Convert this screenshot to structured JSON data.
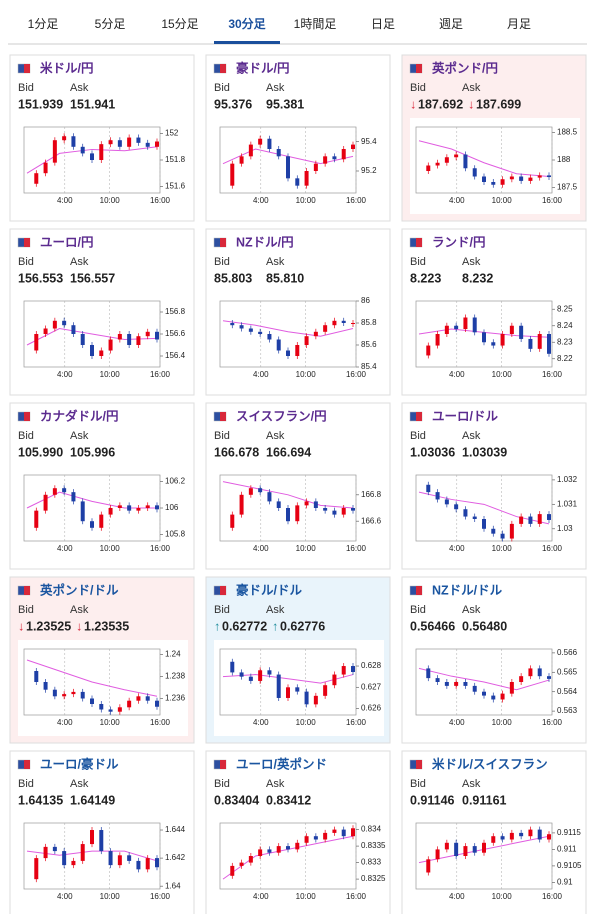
{
  "tabs": {
    "items": [
      "1分足",
      "5分足",
      "15分足",
      "30分足",
      "1時間足",
      "日足",
      "週足",
      "月足"
    ],
    "active": 3
  },
  "labels": {
    "bid": "Bid",
    "ask": "Ask"
  },
  "times": [
    "4:00",
    "10:00",
    "16:00"
  ],
  "style": {
    "up_color": "#e60012",
    "down_color": "#1e3fa6",
    "ma_color": "#e05ce0"
  },
  "cards": [
    {
      "name": "米ドル/円",
      "bid": "151.939",
      "ask": "151.941",
      "chart": {
        "ylim": [
          151.55,
          152.05
        ],
        "yticks": [
          151.6,
          151.8,
          152
        ],
        "values": [
          151.62,
          151.7,
          151.78,
          151.95,
          151.98,
          151.9,
          151.85,
          151.8,
          151.92,
          151.95,
          151.9,
          151.97,
          151.93,
          151.9,
          151.94
        ],
        "ma": [
          151.7,
          151.85,
          151.88,
          151.87,
          151.9
        ]
      }
    },
    {
      "name": "豪ドル/円",
      "bid": "95.376",
      "ask": "95.381",
      "chart": {
        "ylim": [
          95.05,
          95.5
        ],
        "yticks": [
          95.2,
          95.4
        ],
        "values": [
          95.1,
          95.25,
          95.3,
          95.38,
          95.42,
          95.35,
          95.3,
          95.15,
          95.1,
          95.2,
          95.25,
          95.3,
          95.28,
          95.35,
          95.38
        ],
        "ma": [
          95.25,
          95.35,
          95.3,
          95.25,
          95.3
        ]
      }
    },
    {
      "name": "英ポンド/円",
      "bid_arrow": "↓",
      "bid": "187.692",
      "ask_arrow": "↓",
      "ask": "187.699",
      "highlight": "#fdeeee",
      "chart": {
        "ylim": [
          187.4,
          188.6
        ],
        "yticks": [
          187.5,
          188,
          188.5
        ],
        "values": [
          187.8,
          187.9,
          187.95,
          188.05,
          188.1,
          187.85,
          187.7,
          187.6,
          187.55,
          187.65,
          187.7,
          187.62,
          187.68,
          187.72,
          187.69
        ],
        "ma": [
          188.35,
          188.2,
          187.95,
          187.75,
          187.7
        ]
      }
    },
    {
      "name": "ユーロ/円",
      "bid": "156.553",
      "ask": "156.557",
      "chart": {
        "ylim": [
          156.3,
          156.9
        ],
        "yticks": [
          156.4,
          156.6,
          156.8
        ],
        "values": [
          156.45,
          156.6,
          156.65,
          156.72,
          156.68,
          156.6,
          156.5,
          156.4,
          156.45,
          156.55,
          156.6,
          156.5,
          156.58,
          156.62,
          156.55
        ],
        "ma": [
          156.5,
          156.65,
          156.6,
          156.55,
          156.56
        ]
      }
    },
    {
      "name": "NZドル/円",
      "bid": "85.803",
      "ask": "85.810",
      "chart": {
        "ylim": [
          85.4,
          86
        ],
        "yticks": [
          85.4,
          85.6,
          85.8,
          86
        ],
        "values": [
          85.8,
          85.78,
          85.75,
          85.72,
          85.7,
          85.65,
          85.55,
          85.5,
          85.6,
          85.68,
          85.72,
          85.78,
          85.82,
          85.8,
          85.8
        ],
        "ma": [
          85.82,
          85.78,
          85.72,
          85.68,
          85.75
        ]
      }
    },
    {
      "name": "ランド/円",
      "bid": "8.223",
      "ask": "8.232",
      "chart": {
        "ylim": [
          8.215,
          8.255
        ],
        "yticks": [
          8.22,
          8.23,
          8.24,
          8.25
        ],
        "values": [
          8.222,
          8.228,
          8.235,
          8.24,
          8.238,
          8.245,
          8.236,
          8.23,
          8.228,
          8.235,
          8.24,
          8.232,
          8.226,
          8.235,
          8.223
        ],
        "ma": [
          8.235,
          8.238,
          8.236,
          8.234,
          8.233
        ]
      }
    },
    {
      "name": "カナダドル/円",
      "bid": "105.990",
      "ask": "105.996",
      "chart": {
        "ylim": [
          105.75,
          106.25
        ],
        "yticks": [
          105.8,
          106,
          106.2
        ],
        "values": [
          105.85,
          105.98,
          106.1,
          106.15,
          106.12,
          106.05,
          105.9,
          105.85,
          105.95,
          106.0,
          106.02,
          105.98,
          106.0,
          106.02,
          105.99
        ],
        "ma": [
          106.0,
          106.12,
          106.05,
          106.0,
          106.0
        ]
      }
    },
    {
      "name": "スイスフラン/円",
      "bid": "166.678",
      "ask": "166.694",
      "chart": {
        "ylim": [
          166.45,
          166.95
        ],
        "yticks": [
          166.6,
          166.8
        ],
        "values": [
          166.55,
          166.65,
          166.8,
          166.85,
          166.82,
          166.75,
          166.7,
          166.6,
          166.72,
          166.75,
          166.7,
          166.68,
          166.65,
          166.7,
          166.68
        ],
        "ma": [
          166.9,
          166.85,
          166.8,
          166.72,
          166.7
        ]
      }
    },
    {
      "name": "ユーロ/ドル",
      "bid": "1.03036",
      "ask": "1.03039",
      "chart": {
        "ylim": [
          1.0295,
          1.0322
        ],
        "yticks": [
          1.03,
          1.031,
          1.032
        ],
        "values": [
          1.0318,
          1.0315,
          1.0312,
          1.031,
          1.0308,
          1.0305,
          1.0304,
          1.03,
          1.0298,
          1.0296,
          1.0302,
          1.0305,
          1.0302,
          1.0306,
          1.03036
        ],
        "ma": [
          1.0315,
          1.0312,
          1.031,
          1.0305,
          1.0302
        ]
      }
    },
    {
      "name": "英ポンド/ドル",
      "bid_arrow": "↓",
      "bid": "1.23525",
      "ask_arrow": "↓",
      "ask": "1.23535",
      "highlight": "#fdeeee",
      "chart": {
        "ylim": [
          1.2345,
          1.2405
        ],
        "yticks": [
          1.236,
          1.238,
          1.24
        ],
        "values": [
          1.2385,
          1.2375,
          1.2368,
          1.2362,
          1.2364,
          1.2366,
          1.236,
          1.2355,
          1.235,
          1.2348,
          1.2352,
          1.2358,
          1.2362,
          1.2358,
          1.23525
        ],
        "ma": [
          1.2395,
          1.2385,
          1.2375,
          1.2368,
          1.2362
        ]
      }
    },
    {
      "name": "豪ドル/ドル",
      "bid_arrow": "↑",
      "bid": "0.62772",
      "ask_arrow": "↑",
      "ask": "0.62776",
      "highlight": "#e9f4fb",
      "chart": {
        "ylim": [
          0.6257,
          0.6288
        ],
        "yticks": [
          0.626,
          0.627,
          0.628
        ],
        "values": [
          0.6282,
          0.6277,
          0.6275,
          0.6273,
          0.6278,
          0.6276,
          0.6265,
          0.627,
          0.6268,
          0.6262,
          0.6266,
          0.6271,
          0.6276,
          0.628,
          0.62772
        ],
        "ma": [
          0.6275,
          0.6276,
          0.6274,
          0.6272,
          0.6276
        ]
      }
    },
    {
      "name": "NZドル/ドル",
      "bid": "0.56466",
      "ask": "0.56480",
      "chart": {
        "ylim": [
          0.5628,
          0.5662
        ],
        "yticks": [
          0.563,
          0.564,
          0.565,
          0.566
        ],
        "values": [
          0.5652,
          0.5647,
          0.5645,
          0.5643,
          0.5645,
          0.5643,
          0.564,
          0.5638,
          0.5636,
          0.5639,
          0.5645,
          0.5648,
          0.5652,
          0.5648,
          0.56466
        ],
        "ma": [
          0.5652,
          0.5648,
          0.5645,
          0.5641,
          0.5646
        ]
      }
    },
    {
      "name": "ユーロ/豪ドル",
      "bid": "1.64135",
      "ask": "1.64149",
      "chart": {
        "ylim": [
          1.6398,
          1.6445
        ],
        "yticks": [
          1.64,
          1.642,
          1.644
        ],
        "values": [
          1.6405,
          1.642,
          1.6428,
          1.6425,
          1.6415,
          1.6418,
          1.643,
          1.644,
          1.6425,
          1.6415,
          1.6422,
          1.6418,
          1.6412,
          1.642,
          1.64135
        ],
        "ma": [
          1.6425,
          1.6422,
          1.6425,
          1.6425,
          1.6418
        ]
      }
    },
    {
      "name": "ユーロ/英ポンド",
      "bid": "0.83404",
      "ask": "0.83412",
      "chart": {
        "ylim": [
          0.8322,
          0.8342
        ],
        "yticks": [
          0.8325,
          0.833,
          0.8335,
          0.834
        ],
        "values": [
          0.8326,
          0.8329,
          0.833,
          0.8332,
          0.8334,
          0.8333,
          0.8335,
          0.8334,
          0.8336,
          0.8338,
          0.8337,
          0.8339,
          0.834,
          0.8338,
          0.83404
        ],
        "ma": [
          0.8325,
          0.8332,
          0.8334,
          0.8336,
          0.8338
        ]
      }
    },
    {
      "name": "米ドル/スイスフラン",
      "bid": "0.91146",
      "ask": "0.91161",
      "chart": {
        "ylim": [
          0.9098,
          0.9118
        ],
        "yticks": [
          0.91,
          0.9105,
          0.911,
          0.9115
        ],
        "values": [
          0.9103,
          0.9107,
          0.911,
          0.9112,
          0.9108,
          0.9111,
          0.9109,
          0.9112,
          0.9114,
          0.9113,
          0.9115,
          0.9114,
          0.9116,
          0.9113,
          0.91146
        ],
        "ma": [
          0.9106,
          0.9108,
          0.911,
          0.9112,
          0.9114
        ]
      }
    }
  ]
}
